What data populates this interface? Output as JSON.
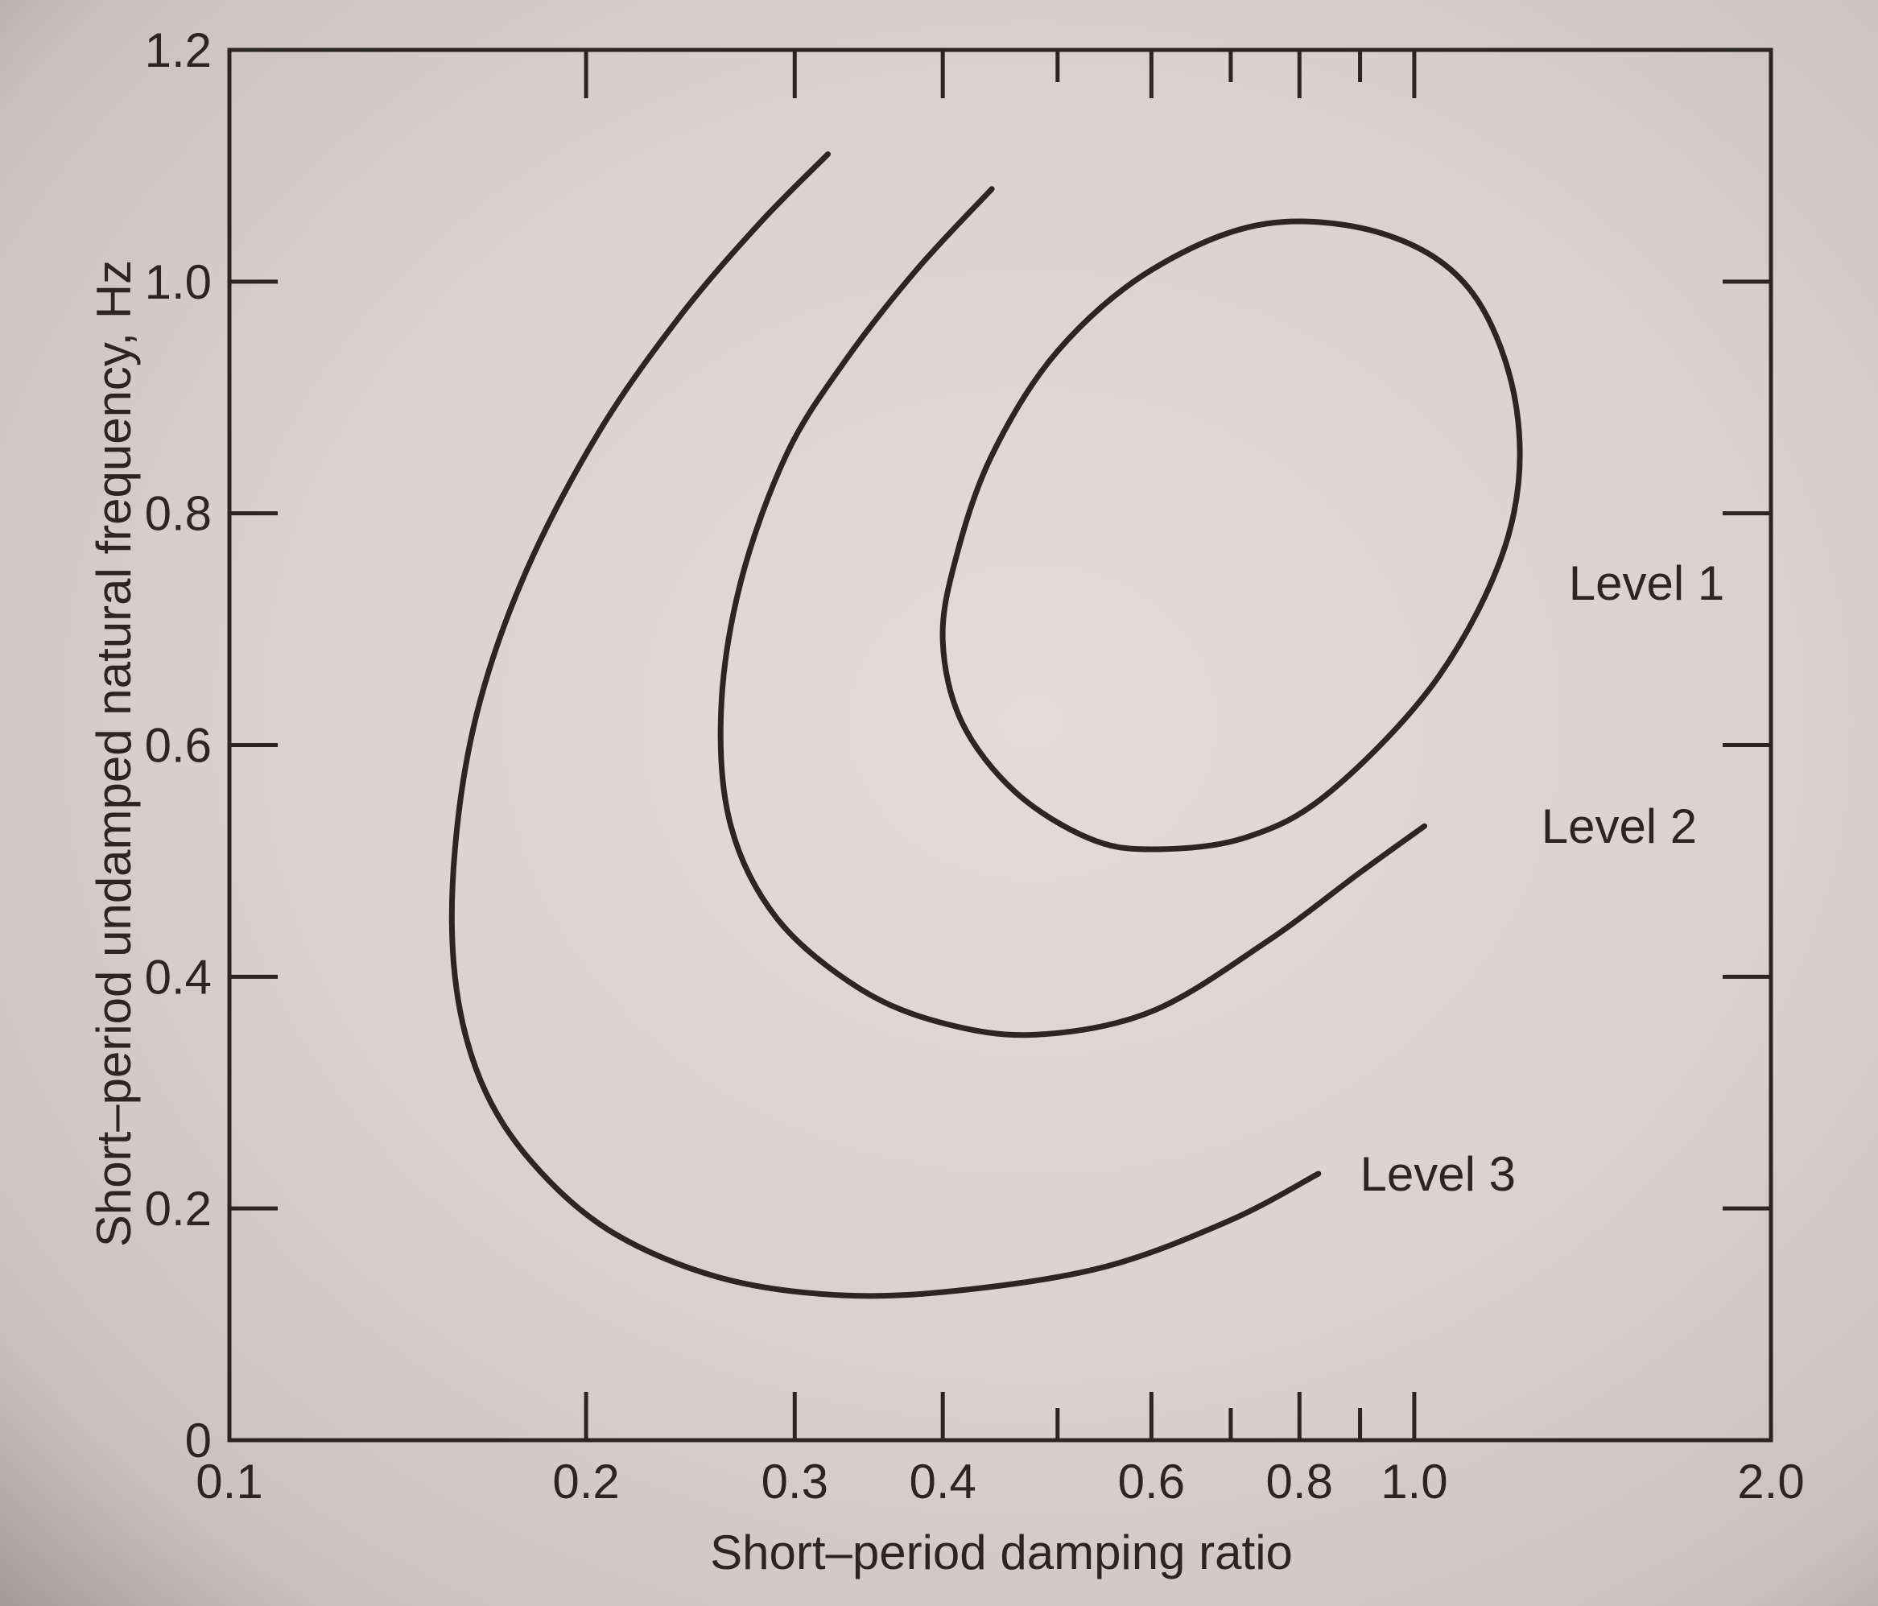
{
  "chart_data": {
    "type": "line",
    "xlabel": "Short–period damping ratio",
    "ylabel": "Short–period undamped natural frequency, Hz",
    "x_scale": "log",
    "xlim": [
      0.1,
      2.0
    ],
    "ylim": [
      0,
      1.2
    ],
    "x_ticks": [
      {
        "value": 0.1,
        "label": "0.1"
      },
      {
        "value": 0.2,
        "label": "0.2"
      },
      {
        "value": 0.3,
        "label": "0.3"
      },
      {
        "value": 0.4,
        "label": "0.4"
      },
      {
        "value": 0.6,
        "label": "0.6"
      },
      {
        "value": 0.8,
        "label": "0.8"
      },
      {
        "value": 1.0,
        "label": "1.0"
      },
      {
        "value": 2.0,
        "label": "2.0"
      }
    ],
    "x_minor_ticks": [
      0.5,
      0.7,
      0.9
    ],
    "y_ticks": [
      {
        "value": 0,
        "label": "0"
      },
      {
        "value": 0.2,
        "label": "0.2"
      },
      {
        "value": 0.4,
        "label": "0.4"
      },
      {
        "value": 0.6,
        "label": "0.6"
      },
      {
        "value": 0.8,
        "label": "0.8"
      },
      {
        "value": 1.0,
        "label": "1.0"
      },
      {
        "value": 1.2,
        "label": "1.2"
      }
    ],
    "grid": false,
    "legend": "none",
    "series": [
      {
        "name": "Level 1",
        "closed": true,
        "label_at": [
          1.35,
          0.74
        ],
        "points": [
          [
            0.6,
            0.51
          ],
          [
            0.53,
            0.52
          ],
          [
            0.46,
            0.56
          ],
          [
            0.415,
            0.62
          ],
          [
            0.4,
            0.69
          ],
          [
            0.41,
            0.76
          ],
          [
            0.44,
            0.85
          ],
          [
            0.5,
            0.94
          ],
          [
            0.6,
            1.01
          ],
          [
            0.75,
            1.05
          ],
          [
            0.95,
            1.04
          ],
          [
            1.12,
            0.99
          ],
          [
            1.22,
            0.89
          ],
          [
            1.2,
            0.78
          ],
          [
            1.05,
            0.66
          ],
          [
            0.85,
            0.56
          ],
          [
            0.72,
            0.52
          ],
          [
            0.6,
            0.51
          ]
        ]
      },
      {
        "name": "Level 2",
        "closed": false,
        "label_at": [
          1.28,
          0.53
        ],
        "points": [
          [
            0.44,
            1.08
          ],
          [
            0.38,
            1.01
          ],
          [
            0.33,
            0.93
          ],
          [
            0.295,
            0.85
          ],
          [
            0.27,
            0.74
          ],
          [
            0.26,
            0.63
          ],
          [
            0.265,
            0.53
          ],
          [
            0.29,
            0.45
          ],
          [
            0.34,
            0.39
          ],
          [
            0.4,
            0.36
          ],
          [
            0.48,
            0.35
          ],
          [
            0.6,
            0.37
          ],
          [
            0.75,
            0.43
          ],
          [
            0.9,
            0.49
          ],
          [
            1.02,
            0.53
          ]
        ]
      },
      {
        "name": "Level 3",
        "closed": false,
        "label_at": [
          0.9,
          0.23
        ],
        "points": [
          [
            0.32,
            1.11
          ],
          [
            0.28,
            1.05
          ],
          [
            0.24,
            0.97
          ],
          [
            0.205,
            0.87
          ],
          [
            0.178,
            0.75
          ],
          [
            0.162,
            0.63
          ],
          [
            0.155,
            0.51
          ],
          [
            0.155,
            0.4
          ],
          [
            0.163,
            0.31
          ],
          [
            0.18,
            0.24
          ],
          [
            0.21,
            0.18
          ],
          [
            0.26,
            0.14
          ],
          [
            0.33,
            0.125
          ],
          [
            0.42,
            0.13
          ],
          [
            0.55,
            0.15
          ],
          [
            0.7,
            0.19
          ],
          [
            0.83,
            0.23
          ]
        ]
      }
    ]
  }
}
